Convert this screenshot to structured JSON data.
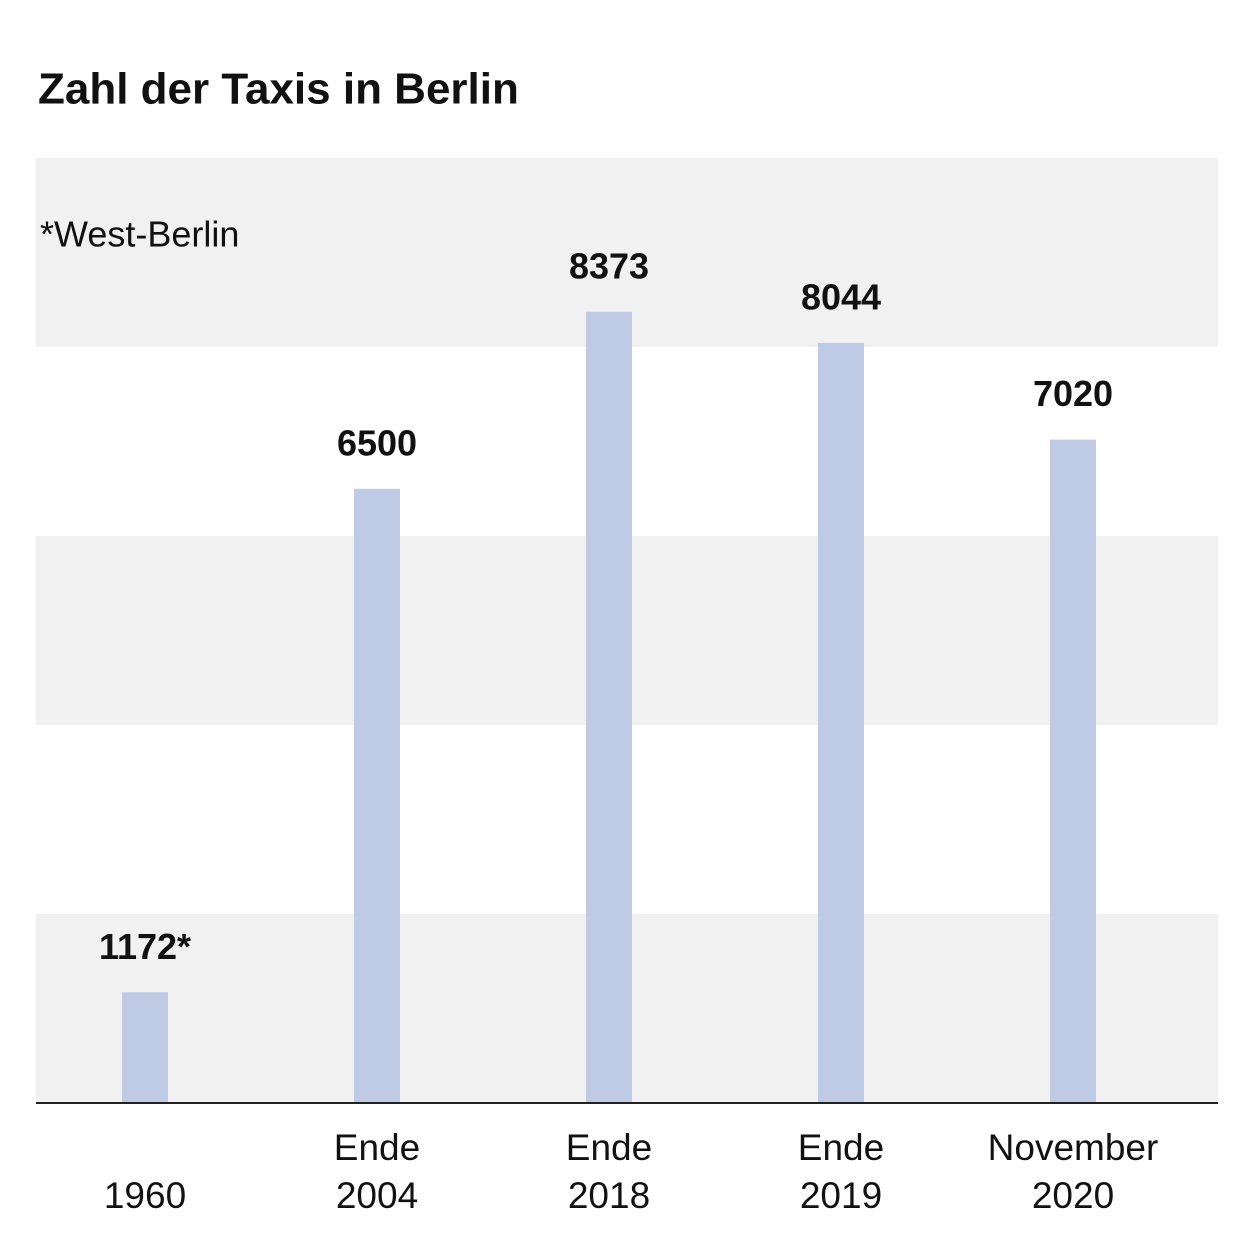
{
  "chart_data": {
    "type": "bar",
    "title": "Zahl der Taxis in Berlin",
    "annotation": "*West-Berlin",
    "categories": [
      "1960",
      "Ende 2004",
      "Ende 2018",
      "Ende 2019",
      "November 2020"
    ],
    "values": [
      1172,
      6500,
      8373,
      8044,
      7020
    ],
    "value_labels": [
      "1172*",
      "6500",
      "8373",
      "8044",
      "7020"
    ],
    "color": "#bfcae5",
    "band_color": "#f1f1f1",
    "ylim": [
      0,
      10000
    ],
    "yticks": [
      0,
      2000,
      4000,
      6000,
      8000,
      10000
    ],
    "grid": true
  }
}
